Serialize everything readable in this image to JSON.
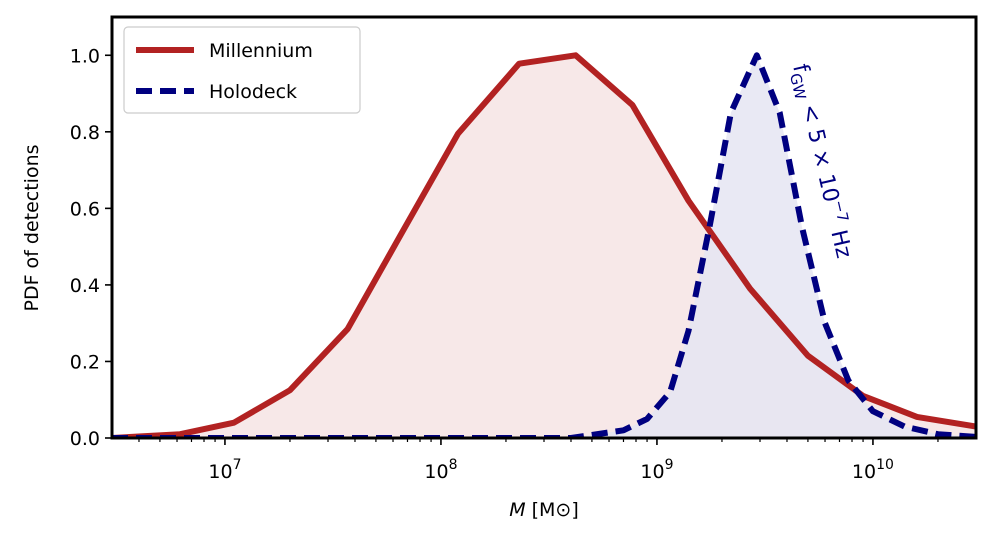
{
  "chart_data": {
    "type": "line",
    "title": "",
    "xlabel": "M [M⊙]",
    "xlabel_symbol": "M",
    "xlabel_unit": "[M⊙]",
    "ylabel": "PDF of detections",
    "xscale": "log",
    "xlim": [
      3000000,
      30000000000
    ],
    "ylim": [
      0,
      1.1
    ],
    "x_ticks": [
      {
        "value": 10000000,
        "label": "10",
        "exp": "7"
      },
      {
        "value": 100000000,
        "label": "10",
        "exp": "8"
      },
      {
        "value": 1000000000,
        "label": "10",
        "exp": "9"
      },
      {
        "value": 10000000000,
        "label": "10",
        "exp": "10"
      }
    ],
    "y_ticks": [
      0.0,
      0.2,
      0.4,
      0.6,
      0.8,
      1.0
    ],
    "y_tick_labels": [
      "0.0",
      "0.2",
      "0.4",
      "0.6",
      "0.8",
      "1.0"
    ],
    "grid": false,
    "legend_position": "top-left",
    "series": [
      {
        "name": "Millennium",
        "style": "solid",
        "color": "#b22222",
        "fill": "#f6e4e4",
        "x": [
          3000000,
          6200000,
          11000000,
          20000000,
          37000000,
          65000000,
          120000000,
          230000000,
          420000000,
          770000000,
          1400000000,
          2700000000,
          5000000000,
          9000000000,
          16000000000,
          30000000000
        ],
        "y": [
          0.0,
          0.01,
          0.04,
          0.125,
          0.285,
          0.53,
          0.795,
          0.978,
          1.0,
          0.87,
          0.62,
          0.39,
          0.215,
          0.11,
          0.055,
          0.03
        ]
      },
      {
        "name": "Holodeck",
        "style": "dashed",
        "color": "#000080",
        "fill": "#e5e5f2",
        "x": [
          3000000,
          100000000,
          400000000,
          700000000,
          900000000,
          1150000000,
          1400000000,
          1750000000,
          2200000000,
          2900000000,
          3700000000,
          4700000000,
          6000000000,
          7700000000,
          10000000000,
          14000000000,
          20000000000,
          30000000000
        ],
        "y": [
          0.0,
          0.0,
          0.0,
          0.02,
          0.05,
          0.12,
          0.28,
          0.55,
          0.85,
          1.0,
          0.85,
          0.55,
          0.3,
          0.15,
          0.07,
          0.03,
          0.01,
          0.003
        ]
      }
    ],
    "annotations": [
      {
        "text": "f",
        "sub": "GW",
        "rest": " < 5 × 10",
        "exp": "−7",
        "unit": " Hz",
        "color": "#000080"
      }
    ]
  }
}
